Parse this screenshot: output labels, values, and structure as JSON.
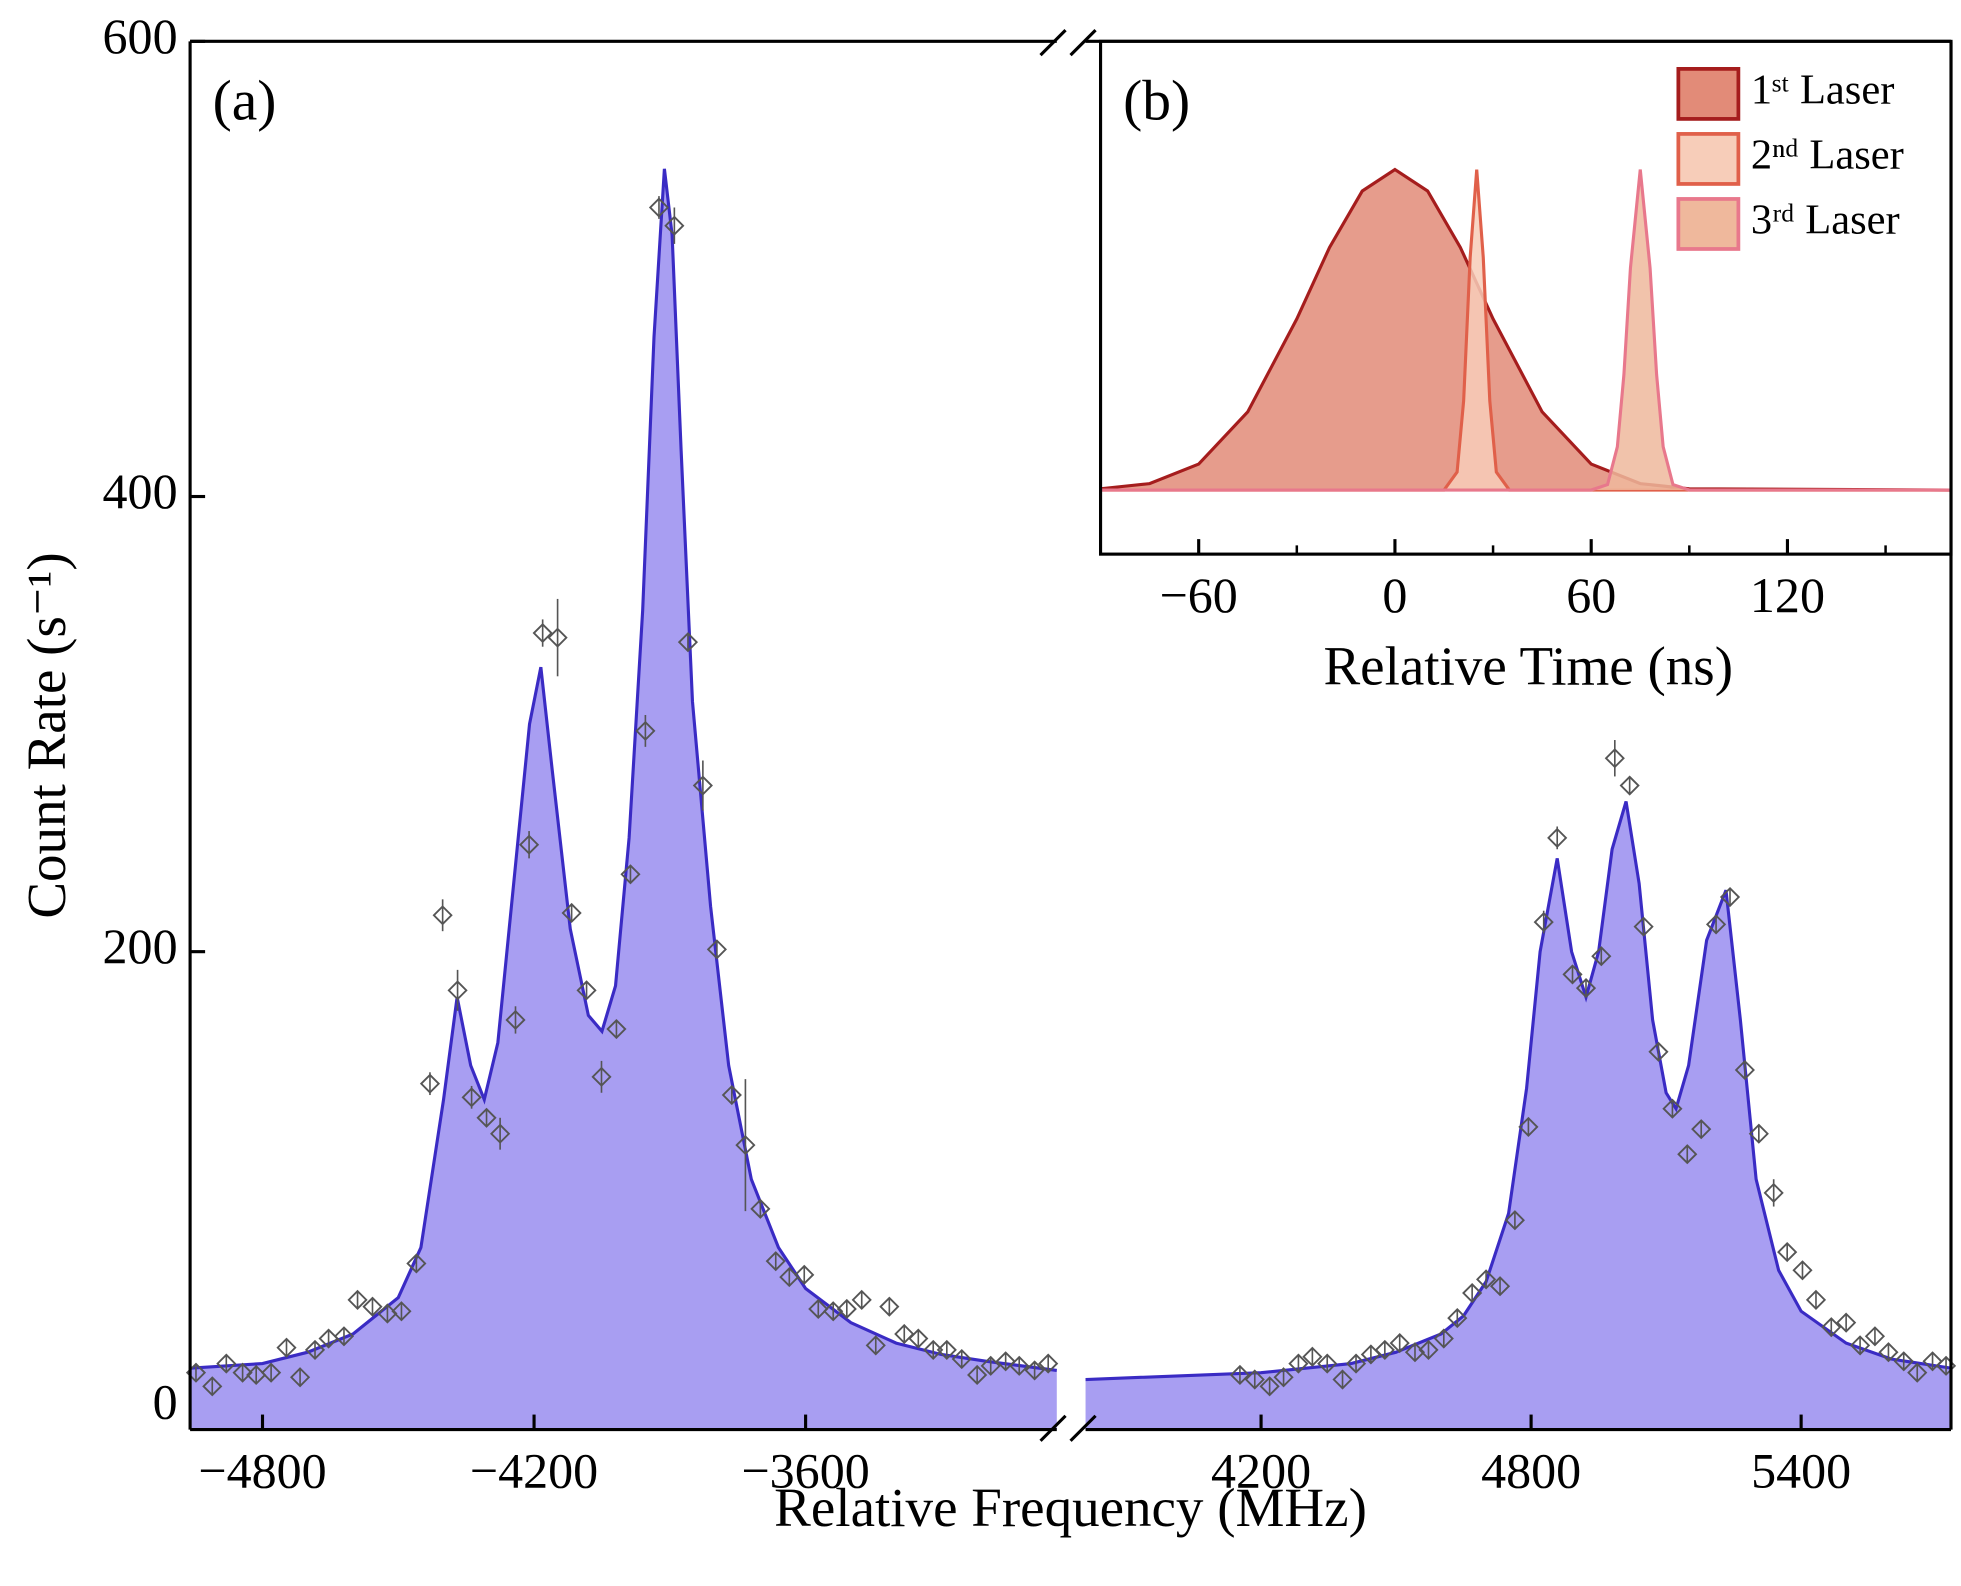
{
  "chart_data": [
    {
      "type": "scatter",
      "annotation": "(a)",
      "x_label": "Relative Frequency (MHz)",
      "y_label": "Count Rate (s⁻¹)",
      "ylim": [
        -10,
        600
      ],
      "yticks": [
        0,
        200,
        400,
        600
      ],
      "point_color": "#555555",
      "fit_color": "#3a2bc4",
      "fill_color": "#a89ef2",
      "segments": [
        {
          "xlim": [
            -4960,
            -3045
          ],
          "xticks": [
            {
              "value": -4800,
              "label": "−4800"
            },
            {
              "value": -4200,
              "label": "−4200"
            },
            {
              "value": -3600,
              "label": "−3600"
            }
          ],
          "points": {
            "x": [
              -4947,
              -4911,
              -4880,
              -4844,
              -4814,
              -4781,
              -4747,
              -4717,
              -4684,
              -4654,
              -4620,
              -4590,
              -4557,
              -4524,
              -4493,
              -4460,
              -4430,
              -4402,
              -4369,
              -4338,
              -4305,
              -4275,
              -4241,
              -4211,
              -4181,
              -4148,
              -4117,
              -4084,
              -4051,
              -4018,
              -3987,
              -3954,
              -3924,
              -3890,
              -3860,
              -3827,
              -3796,
              -3763,
              -3733,
              -3700,
              -3666,
              -3636,
              -3603,
              -3572,
              -3539,
              -3509,
              -3476,
              -3445,
              -3415,
              -3382,
              -3351,
              -3318,
              -3288,
              -3255,
              -3221,
              -3191,
              -3158,
              -3128,
              -3094,
              -3064
            ],
            "values": [
              15,
              9,
              19,
              15,
              14,
              15,
              26,
              13,
              25,
              30,
              31,
              47,
              44,
              41,
              42,
              63,
              142,
              216,
              183,
              136,
              127,
              120,
              170,
              247,
              340,
              338,
              217,
              183,
              145,
              166,
              234,
              297,
              527,
              519,
              336,
              273,
              201,
              137,
              115,
              87,
              64,
              57,
              58,
              43,
              42,
              43,
              47,
              27,
              44,
              32,
              30,
              25,
              25,
              21,
              14,
              18,
              20,
              18,
              16,
              19
            ],
            "errors": [
              4,
              4,
              4,
              4,
              4,
              4,
              4,
              4,
              4,
              4,
              4,
              4,
              4,
              4,
              4,
              4,
              5,
              7,
              9,
              5,
              4,
              7,
              6,
              6,
              6,
              17,
              4,
              4,
              7,
              4,
              4,
              7,
              5,
              8,
              4,
              11,
              4,
              4,
              29,
              4,
              4,
              4,
              4,
              4,
              4,
              4,
              4,
              4,
              4,
              4,
              4,
              4,
              4,
              4,
              4,
              4,
              4,
              4,
              4,
              4
            ]
          },
          "fit": {
            "x": [
              -4960,
              -4800,
              -4700,
              -4600,
              -4500,
              -4450,
              -4400,
              -4370,
              -4340,
              -4310,
              -4280,
              -4240,
              -4210,
              -4185,
              -4160,
              -4120,
              -4080,
              -4050,
              -4020,
              -3990,
              -3960,
              -3935,
              -3912,
              -3895,
              -3875,
              -3850,
              -3810,
              -3770,
              -3720,
              -3660,
              -3600,
              -3500,
              -3400,
              -3300,
              -3200,
              -3045
            ],
            "values": [
              17,
              19,
              24,
              32,
              48,
              70,
              135,
              180,
              150,
              135,
              160,
              240,
              300,
              325,
              280,
              210,
              172,
              165,
              185,
              250,
              350,
              470,
              544,
              515,
              420,
              310,
              220,
              150,
              100,
              70,
              52,
              37,
              28,
              23,
              20,
              16
            ]
          }
        },
        {
          "xlim": [
            3810,
            5733
          ],
          "xticks": [
            4200,
            4800,
            5400
          ],
          "points": {
            "x": [
              4153,
              4186,
              4219,
              4250,
              4283,
              4314,
              4347,
              4381,
              4411,
              4444,
              4475,
              4508,
              4542,
              4572,
              4606,
              4636,
              4669,
              4700,
              4731,
              4764,
              4794,
              4828,
              4858,
              4892,
              4922,
              4956,
              4986,
              5019,
              5050,
              5083,
              5114,
              5147,
              5178,
              5211,
              5242,
              5275,
              5306,
              5339,
              5369,
              5403,
              5433,
              5467,
              5500,
              5531,
              5564,
              5594,
              5628,
              5658,
              5692,
              5722
            ],
            "values": [
              14,
              12,
              9,
              13,
              19,
              22,
              19,
              12,
              19,
              23,
              25,
              28,
              24,
              25,
              30,
              39,
              50,
              56,
              53,
              82,
              123,
              213,
              250,
              190,
              184,
              198,
              285,
              273,
              211,
              156,
              131,
              111,
              122,
              212,
              224,
              148,
              120,
              94,
              68,
              60,
              47,
              35,
              37,
              27,
              31,
              24,
              20,
              15,
              20,
              18
            ],
            "errors": [
              4,
              4,
              4,
              4,
              4,
              4,
              4,
              4,
              4,
              4,
              4,
              4,
              4,
              4,
              4,
              4,
              4,
              4,
              4,
              4,
              4,
              5,
              5,
              4,
              4,
              4,
              8,
              4,
              4,
              4,
              4,
              4,
              4,
              4,
              4,
              4,
              4,
              6,
              4,
              4,
              4,
              4,
              4,
              4,
              4,
              4,
              4,
              4,
              4,
              4
            ]
          },
          "fit": {
            "x": [
              3810,
              4200,
              4400,
              4500,
              4600,
              4650,
              4700,
              4750,
              4790,
              4820,
              4858,
              4890,
              4922,
              4950,
              4980,
              5011,
              5040,
              5070,
              5100,
              5122,
              5150,
              5190,
              5233,
              5265,
              5300,
              5350,
              5400,
              5500,
              5600,
              5733
            ],
            "values": [
              12,
              15,
              19,
              24,
              32,
              40,
              55,
              85,
              140,
              200,
              241,
              200,
              180,
              200,
              245,
              266,
              230,
              170,
              138,
              131,
              150,
              205,
              227,
              170,
              100,
              60,
              42,
              28,
              21,
              17
            ]
          }
        }
      ]
    },
    {
      "type": "area",
      "annotation": "(b)",
      "x_label": "Relative Time (ns)",
      "xlim": [
        -90,
        170
      ],
      "ylim": [
        -0.2,
        1.4
      ],
      "xticks": [
        {
          "value": -60,
          "label": "−60"
        },
        0,
        60,
        120
      ],
      "xticks_minor": [
        -30,
        30,
        90,
        150
      ],
      "legend": "upper right",
      "series": [
        {
          "name": "1ˢᵗ  Laser",
          "color": "#e28b78",
          "edge_color": "#a51d1d",
          "x": [
            -90,
            -75,
            -60,
            -45,
            -30,
            -20,
            -10,
            0,
            10,
            20,
            30,
            45,
            60,
            75,
            90,
            170
          ],
          "values": [
            0.004,
            0.02,
            0.081,
            0.244,
            0.534,
            0.757,
            0.933,
            1,
            0.933,
            0.757,
            0.534,
            0.244,
            0.081,
            0.02,
            0.004,
            0
          ]
        },
        {
          "name": "2ⁿᵈ  Laser",
          "color": "#f7cdb9",
          "edge_color": "#e0604a",
          "x": [
            -90,
            15,
            19,
            21,
            23,
            25,
            27,
            29,
            31,
            35,
            170
          ],
          "values": [
            0,
            0,
            0.056,
            0.278,
            0.726,
            1,
            0.726,
            0.278,
            0.056,
            0,
            0
          ]
        },
        {
          "name": "3ʳᵈ  Laser",
          "color": "#efb89c",
          "edge_color": "#e8788c",
          "x": [
            -90,
            60,
            65,
            68,
            70,
            72,
            75,
            78,
            80,
            82,
            85,
            90,
            170
          ],
          "values": [
            0,
            0,
            0.017,
            0.135,
            0.36,
            0.693,
            1,
            0.693,
            0.36,
            0.135,
            0.017,
            0,
            0
          ]
        }
      ]
    }
  ]
}
